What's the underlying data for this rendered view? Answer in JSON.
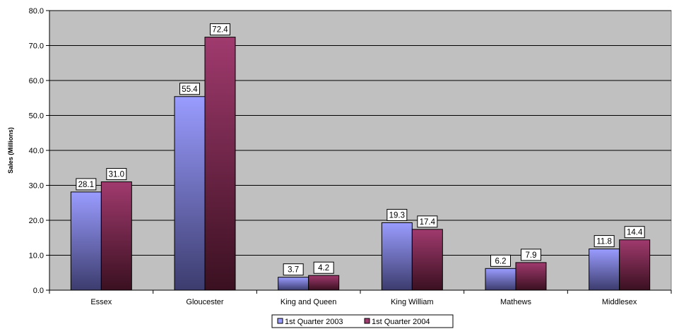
{
  "chart_data": {
    "type": "bar",
    "title": "",
    "xlabel": "",
    "ylabel": "Sales (Millions)",
    "ylim": [
      0,
      80
    ],
    "yticks": [
      "0.0",
      "10.0",
      "20.0",
      "30.0",
      "40.0",
      "50.0",
      "60.0",
      "70.0",
      "80.0"
    ],
    "grid": true,
    "legend_position": "bottom",
    "categories": [
      "Essex",
      "Gloucester",
      "King and Queen",
      "King William",
      "Mathews",
      "Middlesex"
    ],
    "series": [
      {
        "name": "1st Quarter 2003",
        "values": [
          28.1,
          55.4,
          3.7,
          19.3,
          6.2,
          11.8
        ],
        "labels": [
          "28.1",
          "55.4",
          "3.7",
          "19.3",
          "6.2",
          "11.8"
        ],
        "color_top": "#9a9cff",
        "color_bottom": "#3c3c6e"
      },
      {
        "name": "1st Quarter 2004",
        "values": [
          31.0,
          72.4,
          4.2,
          17.4,
          7.9,
          14.4
        ],
        "labels": [
          "31.0",
          "72.4",
          "4.2",
          "17.4",
          "7.9",
          "14.4"
        ],
        "color_top": "#a03a6e",
        "color_bottom": "#3a1020"
      }
    ],
    "plot_background": "#c0c0c0"
  }
}
